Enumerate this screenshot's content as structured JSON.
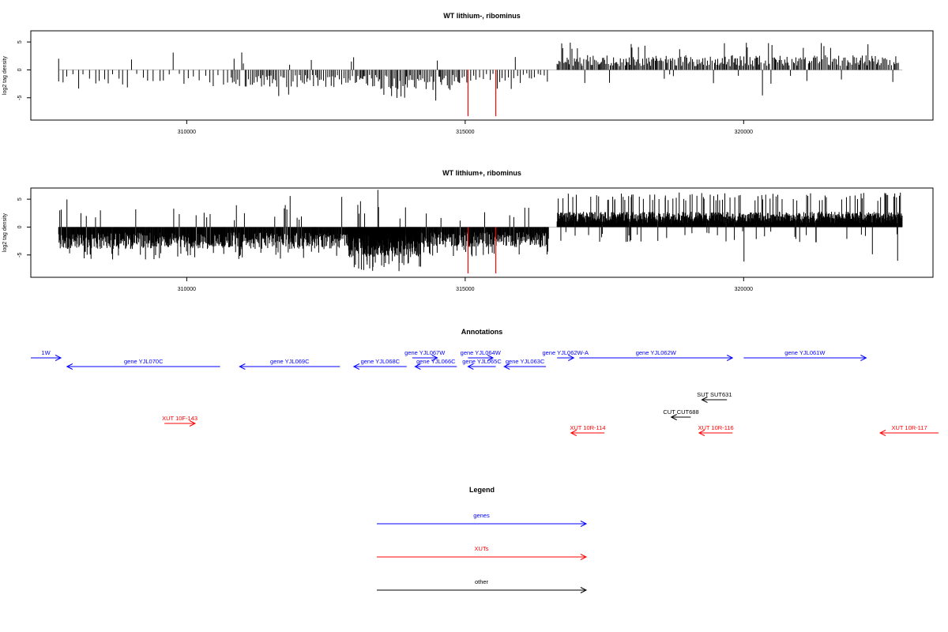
{
  "panels": [
    {
      "title": "WT lithium-, ribominus",
      "ylabel": "log2 tag density",
      "yticks": [
        5,
        0,
        -5
      ],
      "xticks": [
        310000,
        315000,
        320000
      ]
    },
    {
      "title": "WT lithium+, ribominus",
      "ylabel": "log2 tag density",
      "yticks": [
        5,
        0,
        -5
      ],
      "xticks": [
        310000,
        315000,
        320000
      ]
    }
  ],
  "chart_data": [
    {
      "type": "bar",
      "title": "WT lithium-, ribominus",
      "ylabel": "log2 tag density",
      "xlim": [
        307200,
        323400
      ],
      "ylim": [
        -9,
        7
      ],
      "grid": false,
      "colors": {
        "bars": "#000000",
        "markers": "#ff0000",
        "baseline": "#bebebe"
      },
      "marker_lines": [
        {
          "x": 315050,
          "y": -8.3
        },
        {
          "x": 315550,
          "y": -8.3
        }
      ],
      "density_profile": [
        {
          "from": 307700,
          "to": 310800,
          "sign": -1,
          "typical": 2.2,
          "max": 3.5,
          "tick_spacing": 90
        },
        {
          "from": 310800,
          "to": 312900,
          "sign": -1,
          "typical": 2.6,
          "max": 5.2,
          "tick_spacing": 30
        },
        {
          "from": 312900,
          "to": 314900,
          "sign": -1,
          "typical": 3.0,
          "max": 5.6,
          "tick_spacing": 25
        },
        {
          "from": 314900,
          "to": 316500,
          "sign": -1,
          "typical": 2.0,
          "max": 4.2,
          "tick_spacing": 55
        },
        {
          "from": 316650,
          "to": 322800,
          "sign": 1,
          "typical": 2.2,
          "max": 4.9,
          "tick_spacing": 22
        }
      ],
      "spikes": [
        {
          "x": 307700,
          "y": 2.0
        },
        {
          "x": 310850,
          "y": 2.0
        },
        {
          "x": 315900,
          "y": 2.3
        }
      ]
    },
    {
      "type": "bar",
      "title": "WT lithium+, ribominus",
      "ylabel": "log2 tag density",
      "xlim": [
        307200,
        323400
      ],
      "ylim": [
        -9,
        7
      ],
      "grid": false,
      "colors": {
        "bars": "#000000",
        "markers": "#ff0000",
        "baseline": "#bebebe"
      },
      "marker_lines": [
        {
          "x": 315050,
          "y": -8.3
        },
        {
          "x": 315550,
          "y": -8.3
        }
      ],
      "density_profile": [
        {
          "from": 307700,
          "to": 312900,
          "sign": -1,
          "typical": 3.3,
          "max": 5.8,
          "tick_spacing": 9
        },
        {
          "from": 312900,
          "to": 314200,
          "sign": -1,
          "typical": 4.5,
          "max": 8.0,
          "tick_spacing": 5
        },
        {
          "from": 314200,
          "to": 316500,
          "sign": -1,
          "typical": 3.0,
          "max": 5.4,
          "tick_spacing": 9
        },
        {
          "from": 316650,
          "to": 322850,
          "sign": 1,
          "typical": 2.3,
          "max": 6.2,
          "tick_spacing": 6
        }
      ],
      "spikes": [
        {
          "x": 307720,
          "y": 3.0
        },
        {
          "x": 308100,
          "y": 2.5
        },
        {
          "x": 308450,
          "y": 3.0
        }
      ]
    }
  ],
  "annotations": {
    "title": "Annotations",
    "xlim": [
      307200,
      323400
    ],
    "features": [
      {
        "label": "1W",
        "from": 307200,
        "to": 307740,
        "dir": "right",
        "row": 0,
        "color": "#0000ff"
      },
      {
        "label": "gene YJL070C",
        "from": 307850,
        "to": 310600,
        "dir": "left",
        "row": 1,
        "color": "#0000ff"
      },
      {
        "label": "gene YJL069C",
        "from": 310950,
        "to": 312750,
        "dir": "left",
        "row": 1,
        "color": "#0000ff"
      },
      {
        "label": "gene YJL068C",
        "from": 313000,
        "to": 313950,
        "dir": "left",
        "row": 1,
        "color": "#0000ff"
      },
      {
        "label": "gene YJL067W",
        "from": 314050,
        "to": 314500,
        "dir": "right",
        "row": 0,
        "color": "#0000ff"
      },
      {
        "label": "gene YJL066C",
        "from": 314100,
        "to": 314850,
        "dir": "left",
        "row": 1,
        "color": "#0000ff"
      },
      {
        "label": "gene YJL064W",
        "from": 315050,
        "to": 315500,
        "dir": "right",
        "row": 0,
        "color": "#0000ff"
      },
      {
        "label": "gene YJL065C",
        "from": 315050,
        "to": 315550,
        "dir": "left",
        "row": 1,
        "color": "#0000ff"
      },
      {
        "label": "gene YJL063C",
        "from": 315700,
        "to": 316450,
        "dir": "left",
        "row": 1,
        "color": "#0000ff"
      },
      {
        "label": "gene YJL062W-A",
        "from": 316650,
        "to": 316950,
        "dir": "right",
        "row": 0,
        "color": "#0000ff"
      },
      {
        "label": "gene YJL062W",
        "from": 317050,
        "to": 319800,
        "dir": "right",
        "row": 0,
        "color": "#0000ff"
      },
      {
        "label": "gene YJL061W",
        "from": 320000,
        "to": 322200,
        "dir": "right",
        "row": 0,
        "color": "#0000ff"
      },
      {
        "label": "SUT SUT631",
        "from": 319250,
        "to": 319700,
        "dir": "left",
        "row": 2,
        "color": "#000000"
      },
      {
        "label": "CUT CUT688",
        "from": 318700,
        "to": 319050,
        "dir": "left",
        "row": 3,
        "color": "#000000"
      },
      {
        "label": "XUT 10F-143",
        "from": 309600,
        "to": 310150,
        "dir": "right",
        "row": 4,
        "color": "#ff0000"
      },
      {
        "label": "XUT 10R-114",
        "from": 316900,
        "to": 317500,
        "dir": "left",
        "row": 5,
        "color": "#ff0000"
      },
      {
        "label": "XUT 10R-116",
        "from": 319200,
        "to": 319800,
        "dir": "left",
        "row": 5,
        "color": "#ff0000"
      },
      {
        "label": "XUT 10R-117",
        "from": 322450,
        "to": 323500,
        "dir": "left",
        "row": 5,
        "color": "#ff0000"
      }
    ]
  },
  "legend": {
    "title": "Legend",
    "items": [
      {
        "label": "genes",
        "color": "#0000ff"
      },
      {
        "label": "XUTs",
        "color": "#ff0000"
      },
      {
        "label": "other",
        "color": "#000000"
      }
    ]
  }
}
